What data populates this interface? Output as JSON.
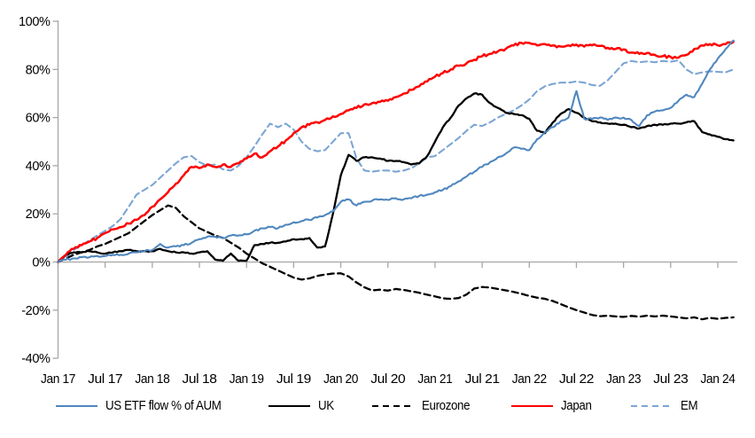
{
  "chart_data": {
    "type": "line",
    "title": "",
    "xlabel": "",
    "ylabel": "",
    "ylim": [
      -40,
      100
    ],
    "y_tick_labels": [
      "100%",
      "80%",
      "60%",
      "40%",
      "20%",
      "0%",
      "-20%",
      "-40%"
    ],
    "y_tick_values": [
      100,
      80,
      60,
      40,
      20,
      0,
      -20,
      -40
    ],
    "x_tick_labels": [
      "Jan 17",
      "Jul 17",
      "Jan 18",
      "Jul 18",
      "Jan 19",
      "Jul 19",
      "Jan 20",
      "Jul 20",
      "Jan 21",
      "Jul 21",
      "Jan 22",
      "Jul 22",
      "Jan 23",
      "Jul 23",
      "Jan 24"
    ],
    "x_start": "Jan 2017",
    "x_interval": "monthly",
    "grid": "off",
    "zero_line": true,
    "legend_position": "bottom",
    "axis_color": "#A6A6A6",
    "text_color": "#000000",
    "unit": "% of AUM",
    "series": [
      {
        "name": "US ETF flow % of AUM",
        "color": "#4F87BE",
        "style": "solid",
        "values": [
          0,
          1,
          1.5,
          2,
          2,
          2.5,
          2.5,
          3,
          3,
          3.5,
          4,
          4.5,
          5,
          7.5,
          6,
          6.5,
          7,
          8,
          9.5,
          10.5,
          10.5,
          10,
          11,
          11,
          11.5,
          13,
          14,
          14.5,
          14,
          15.5,
          16.5,
          17,
          17.5,
          18.5,
          19.5,
          21,
          25,
          26,
          23.5,
          25,
          25.5,
          26,
          25.8,
          26.5,
          26,
          26.5,
          27.5,
          28,
          29,
          30,
          31.5,
          33.5,
          35.5,
          37.5,
          39.5,
          41.5,
          43.5,
          45,
          47.5,
          47,
          46.5,
          51,
          54,
          56,
          58.5,
          60,
          71,
          59.5,
          59.5,
          60,
          59,
          60,
          60,
          59,
          56.5,
          61,
          62.5,
          63,
          64,
          67,
          69.5,
          68.5,
          74,
          80,
          84.5,
          88.5,
          92
        ]
      },
      {
        "name": "UK",
        "color": "#000000",
        "style": "solid",
        "values": [
          0,
          3,
          4,
          4,
          4.5,
          4,
          3.5,
          4,
          4.5,
          5,
          4.5,
          4.5,
          4.5,
          5.5,
          4.5,
          4,
          4,
          3.5,
          4,
          4.5,
          1,
          0.5,
          3.5,
          0.5,
          0.5,
          7,
          7.5,
          8,
          8,
          8.5,
          9.5,
          9.5,
          10,
          6,
          6.5,
          20,
          36,
          44.5,
          42,
          43.5,
          43.5,
          43,
          42,
          42,
          41.5,
          40.5,
          41,
          44,
          50,
          56,
          60,
          65,
          68,
          70,
          69.5,
          66,
          64,
          62,
          61.5,
          61,
          59.5,
          54.5,
          53.5,
          58,
          61.5,
          63.5,
          62,
          60,
          58.5,
          58,
          57.5,
          57.5,
          57,
          56,
          55.5,
          56.5,
          57,
          57,
          57.5,
          57.5,
          58,
          58.5,
          54,
          53,
          52,
          51,
          50.5
        ]
      },
      {
        "name": "Eurozone",
        "color": "#000000",
        "style": "dashed",
        "values": [
          0,
          1.5,
          3,
          4,
          5,
          6.5,
          7.5,
          9,
          10.5,
          12,
          14.5,
          17,
          19.5,
          21.5,
          23.5,
          22.5,
          19,
          16.5,
          14,
          12.5,
          11,
          10,
          8,
          6,
          3.5,
          1.5,
          -0.5,
          -2,
          -3.5,
          -5,
          -6.5,
          -7.3,
          -6.8,
          -5.8,
          -5.2,
          -4.8,
          -4.7,
          -6,
          -8.5,
          -10.5,
          -11.8,
          -11.5,
          -11.9,
          -11.2,
          -11.6,
          -12.2,
          -12.8,
          -13.6,
          -14.3,
          -15.1,
          -15.3,
          -15,
          -13.5,
          -11,
          -10.4,
          -10.6,
          -11.2,
          -11.8,
          -12.4,
          -13.2,
          -14.1,
          -14.8,
          -15.3,
          -16.2,
          -17.5,
          -18.8,
          -20,
          -21,
          -22,
          -22.5,
          -22.3,
          -22.6,
          -22.8,
          -22.4,
          -22.7,
          -22.3,
          -22.6,
          -22.3,
          -22.6,
          -23,
          -23.4,
          -23,
          -23.8,
          -23.2,
          -23.6,
          -23.2,
          -23
        ]
      },
      {
        "name": "Japan",
        "color": "#FE0000",
        "style": "solid",
        "values": [
          0,
          3,
          5.5,
          7,
          8.5,
          10,
          12,
          13.5,
          14.5,
          16,
          17.5,
          19.5,
          23,
          26,
          29,
          32.5,
          36,
          39.5,
          39,
          40.5,
          39.5,
          40.5,
          39.5,
          41,
          43,
          45,
          43.5,
          46,
          48,
          50.5,
          53.5,
          56,
          57,
          58,
          59,
          60.5,
          61.5,
          63,
          64,
          65.5,
          66,
          66.5,
          67,
          68.5,
          70,
          71.5,
          73,
          75,
          77,
          78.5,
          80,
          81.5,
          82.5,
          84,
          85.5,
          86.5,
          87.5,
          88.5,
          90,
          91,
          91,
          90,
          90.5,
          90,
          89.5,
          90,
          90.3,
          89.5,
          90,
          89.8,
          89,
          88.5,
          88.3,
          87,
          86.5,
          86.8,
          86,
          85.5,
          85.2,
          84.9,
          86,
          88.5,
          90,
          90.5,
          90,
          90.5,
          91.5
        ]
      },
      {
        "name": "EM",
        "color": "#7CA5D4",
        "style": "dashed",
        "values": [
          0,
          2,
          5,
          7,
          9,
          11,
          13,
          15,
          18,
          23,
          28,
          30,
          32,
          35,
          38,
          41,
          43.5,
          44,
          41.5,
          40,
          40.5,
          38.5,
          38,
          40,
          43.5,
          48,
          53,
          57.5,
          56,
          57.5,
          55,
          50,
          47,
          46,
          46.5,
          50,
          53.5,
          53.5,
          43,
          38,
          37.5,
          38,
          38,
          37.5,
          38,
          39,
          41,
          43.5,
          44,
          46.5,
          49,
          51.5,
          54.5,
          57,
          56.5,
          58,
          60,
          61.5,
          63,
          65,
          67.5,
          71,
          73,
          74,
          74.5,
          74.5,
          75,
          74.5,
          73.5,
          73.2,
          75.5,
          79,
          82.5,
          83.5,
          83,
          83.3,
          83,
          83.5,
          83.2,
          83.8,
          80,
          78,
          78.8,
          79.2,
          79,
          78.8,
          80
        ]
      }
    ]
  }
}
